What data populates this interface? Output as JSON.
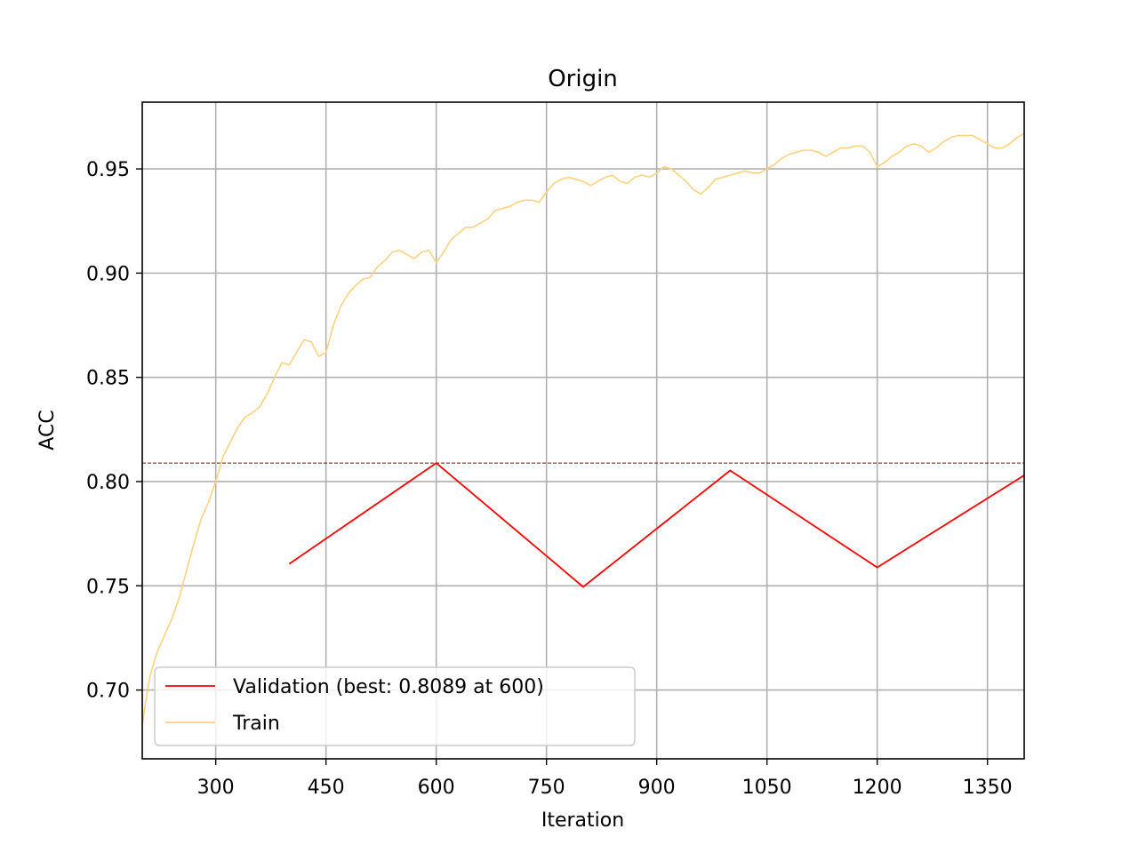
{
  "chart_data": {
    "type": "line",
    "title": "Origin",
    "xlabel": "Iteration",
    "ylabel": "ACC",
    "xlim": [
      200,
      1400
    ],
    "ylim": [
      0.667,
      0.982
    ],
    "xticks": [
      300,
      450,
      600,
      750,
      900,
      1050,
      1200,
      1350
    ],
    "xtick_labels": [
      "300",
      "450",
      "600",
      "750",
      "900",
      "1050",
      "1200",
      "1350"
    ],
    "yticks": [
      0.7,
      0.75,
      0.8,
      0.85,
      0.9,
      0.95
    ],
    "ytick_labels": [
      "0.70",
      "0.75",
      "0.80",
      "0.85",
      "0.90",
      "0.95"
    ],
    "grid": true,
    "legend_position": "lower-left",
    "reference_line": {
      "y": 0.8089,
      "color": "#8b0000",
      "style": "dashed"
    },
    "series": [
      {
        "name": "Validation (best: 0.8089 at 600)",
        "color": "#ff0000",
        "x": [
          400,
          600,
          800,
          1000,
          1200,
          1400
        ],
        "y": [
          0.7605,
          0.8089,
          0.7495,
          0.8053,
          0.7588,
          0.803
        ]
      },
      {
        "name": "Train",
        "color": "#ffd280",
        "x": [
          200,
          205,
          210,
          220,
          230,
          240,
          250,
          260,
          270,
          280,
          290,
          300,
          310,
          320,
          330,
          340,
          350,
          360,
          370,
          380,
          390,
          400,
          410,
          420,
          430,
          440,
          450,
          460,
          470,
          480,
          490,
          500,
          510,
          520,
          530,
          540,
          550,
          560,
          570,
          580,
          590,
          600,
          610,
          620,
          630,
          640,
          650,
          660,
          670,
          680,
          690,
          700,
          710,
          720,
          730,
          740,
          750,
          760,
          770,
          780,
          790,
          800,
          810,
          820,
          830,
          840,
          850,
          860,
          870,
          880,
          890,
          900,
          910,
          920,
          930,
          940,
          950,
          960,
          970,
          980,
          990,
          1000,
          1010,
          1020,
          1030,
          1040,
          1050,
          1060,
          1070,
          1080,
          1090,
          1100,
          1110,
          1120,
          1130,
          1140,
          1150,
          1160,
          1170,
          1180,
          1190,
          1200,
          1210,
          1220,
          1230,
          1240,
          1250,
          1260,
          1270,
          1280,
          1290,
          1300,
          1310,
          1320,
          1330,
          1340,
          1350,
          1360,
          1370,
          1380,
          1390,
          1400
        ],
        "y": [
          0.683,
          0.695,
          0.706,
          0.718,
          0.726,
          0.734,
          0.744,
          0.757,
          0.77,
          0.782,
          0.79,
          0.8,
          0.812,
          0.819,
          0.826,
          0.831,
          0.833,
          0.836,
          0.842,
          0.85,
          0.857,
          0.856,
          0.862,
          0.868,
          0.867,
          0.86,
          0.862,
          0.875,
          0.884,
          0.89,
          0.894,
          0.897,
          0.898,
          0.903,
          0.906,
          0.91,
          0.911,
          0.909,
          0.907,
          0.91,
          0.911,
          0.905,
          0.91,
          0.916,
          0.919,
          0.922,
          0.922,
          0.924,
          0.926,
          0.93,
          0.931,
          0.932,
          0.934,
          0.935,
          0.935,
          0.934,
          0.939,
          0.943,
          0.945,
          0.946,
          0.945,
          0.944,
          0.942,
          0.944,
          0.946,
          0.947,
          0.944,
          0.943,
          0.946,
          0.947,
          0.946,
          0.948,
          0.951,
          0.95,
          0.947,
          0.944,
          0.94,
          0.938,
          0.941,
          0.945,
          0.946,
          0.947,
          0.948,
          0.949,
          0.948,
          0.948,
          0.95,
          0.952,
          0.955,
          0.957,
          0.958,
          0.959,
          0.959,
          0.958,
          0.956,
          0.958,
          0.96,
          0.96,
          0.961,
          0.961,
          0.958,
          0.951,
          0.953,
          0.956,
          0.958,
          0.961,
          0.962,
          0.961,
          0.958,
          0.96,
          0.963,
          0.965,
          0.966,
          0.966,
          0.966,
          0.964,
          0.962,
          0.96,
          0.96,
          0.962,
          0.965,
          0.967
        ]
      }
    ]
  }
}
